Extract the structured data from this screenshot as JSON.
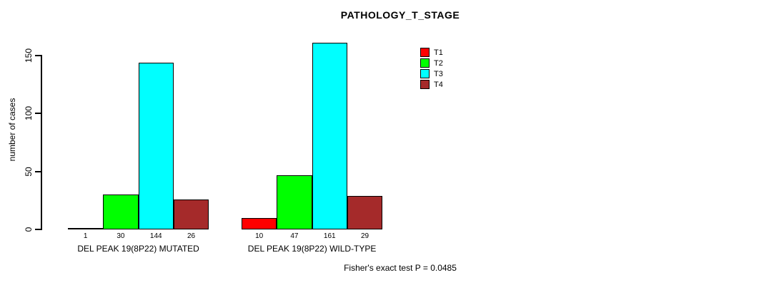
{
  "chart_data": {
    "type": "bar",
    "title": "PATHOLOGY_T_STAGE",
    "xlabel": "",
    "ylabel": "number of cases",
    "ylim": [
      0,
      150
    ],
    "yticks": [
      0,
      50,
      100,
      150
    ],
    "grid": false,
    "legend_position": "top-right",
    "series": [
      {
        "name": "T1",
        "color": "#ff0000"
      },
      {
        "name": "T2",
        "color": "#00ff00"
      },
      {
        "name": "T3",
        "color": "#00ffff"
      },
      {
        "name": "T4",
        "color": "#a52a2a"
      }
    ],
    "categories": [
      "DEL PEAK 19(8P22) MUTATED",
      "DEL PEAK 19(8P22) WILD-TYPE"
    ],
    "groups": [
      {
        "label": "DEL PEAK 19(8P22) MUTATED",
        "values": [
          1,
          30,
          144,
          26
        ]
      },
      {
        "label": "DEL PEAK 19(8P22) WILD-TYPE",
        "values": [
          10,
          47,
          161,
          29
        ]
      }
    ],
    "bar_value_labels": true,
    "annotation": "Fisher's exact test P = 0.0485",
    "axis_color": "#000000",
    "background_color": "#ffffff"
  }
}
